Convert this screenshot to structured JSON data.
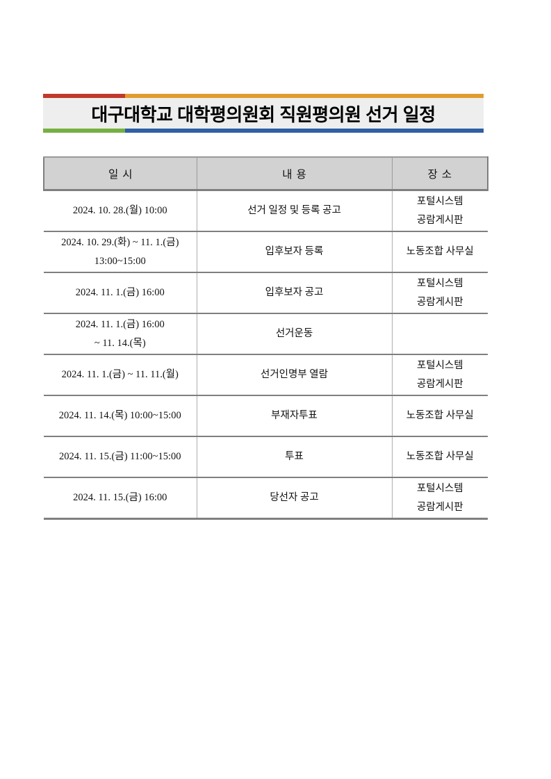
{
  "title": {
    "text": "대구대학교 대학평의원회 직원평의원 선거 일정",
    "band_bg": "#eeeeee",
    "bar_colors": {
      "red": "#c0392b",
      "orange": "#e09c2f",
      "green": "#76b043",
      "blue": "#2f5fa5"
    }
  },
  "table": {
    "header_bg": "#d2d2d2",
    "headers": [
      "일시",
      "내용",
      "장소"
    ],
    "rows": [
      {
        "datetime": [
          "2024. 10. 28.(월) 10:00"
        ],
        "content": "선거 일정 및 등록 공고",
        "place": [
          "포털시스템",
          "공람게시판"
        ]
      },
      {
        "datetime": [
          "2024. 10. 29.(화) ~ 11. 1.(금)",
          "13:00~15:00"
        ],
        "content": "입후보자 등록",
        "place": [
          "노동조합 사무실"
        ]
      },
      {
        "datetime": [
          "2024. 11. 1.(금) 16:00"
        ],
        "content": "입후보자 공고",
        "place": [
          "포털시스템",
          "공람게시판"
        ]
      },
      {
        "datetime": [
          "2024. 11. 1.(금) 16:00",
          "~ 11. 14.(목)"
        ],
        "content": "선거운동",
        "place": []
      },
      {
        "datetime": [
          "2024. 11. 1.(금) ~ 11. 11.(월)"
        ],
        "content": "선거인명부 열람",
        "place": [
          "포털시스템",
          "공람게시판"
        ]
      },
      {
        "datetime": [
          "2024. 11. 14.(목) 10:00~15:00"
        ],
        "content": "부재자투표",
        "place": [
          "노동조합 사무실"
        ]
      },
      {
        "datetime": [
          "2024. 11. 15.(금) 11:00~15:00"
        ],
        "content": "투표",
        "place": [
          "노동조합 사무실"
        ]
      },
      {
        "datetime": [
          "2024. 11. 15.(금) 16:00"
        ],
        "content": "당선자 공고",
        "place": [
          "포털시스템",
          "공람게시판"
        ]
      }
    ]
  }
}
